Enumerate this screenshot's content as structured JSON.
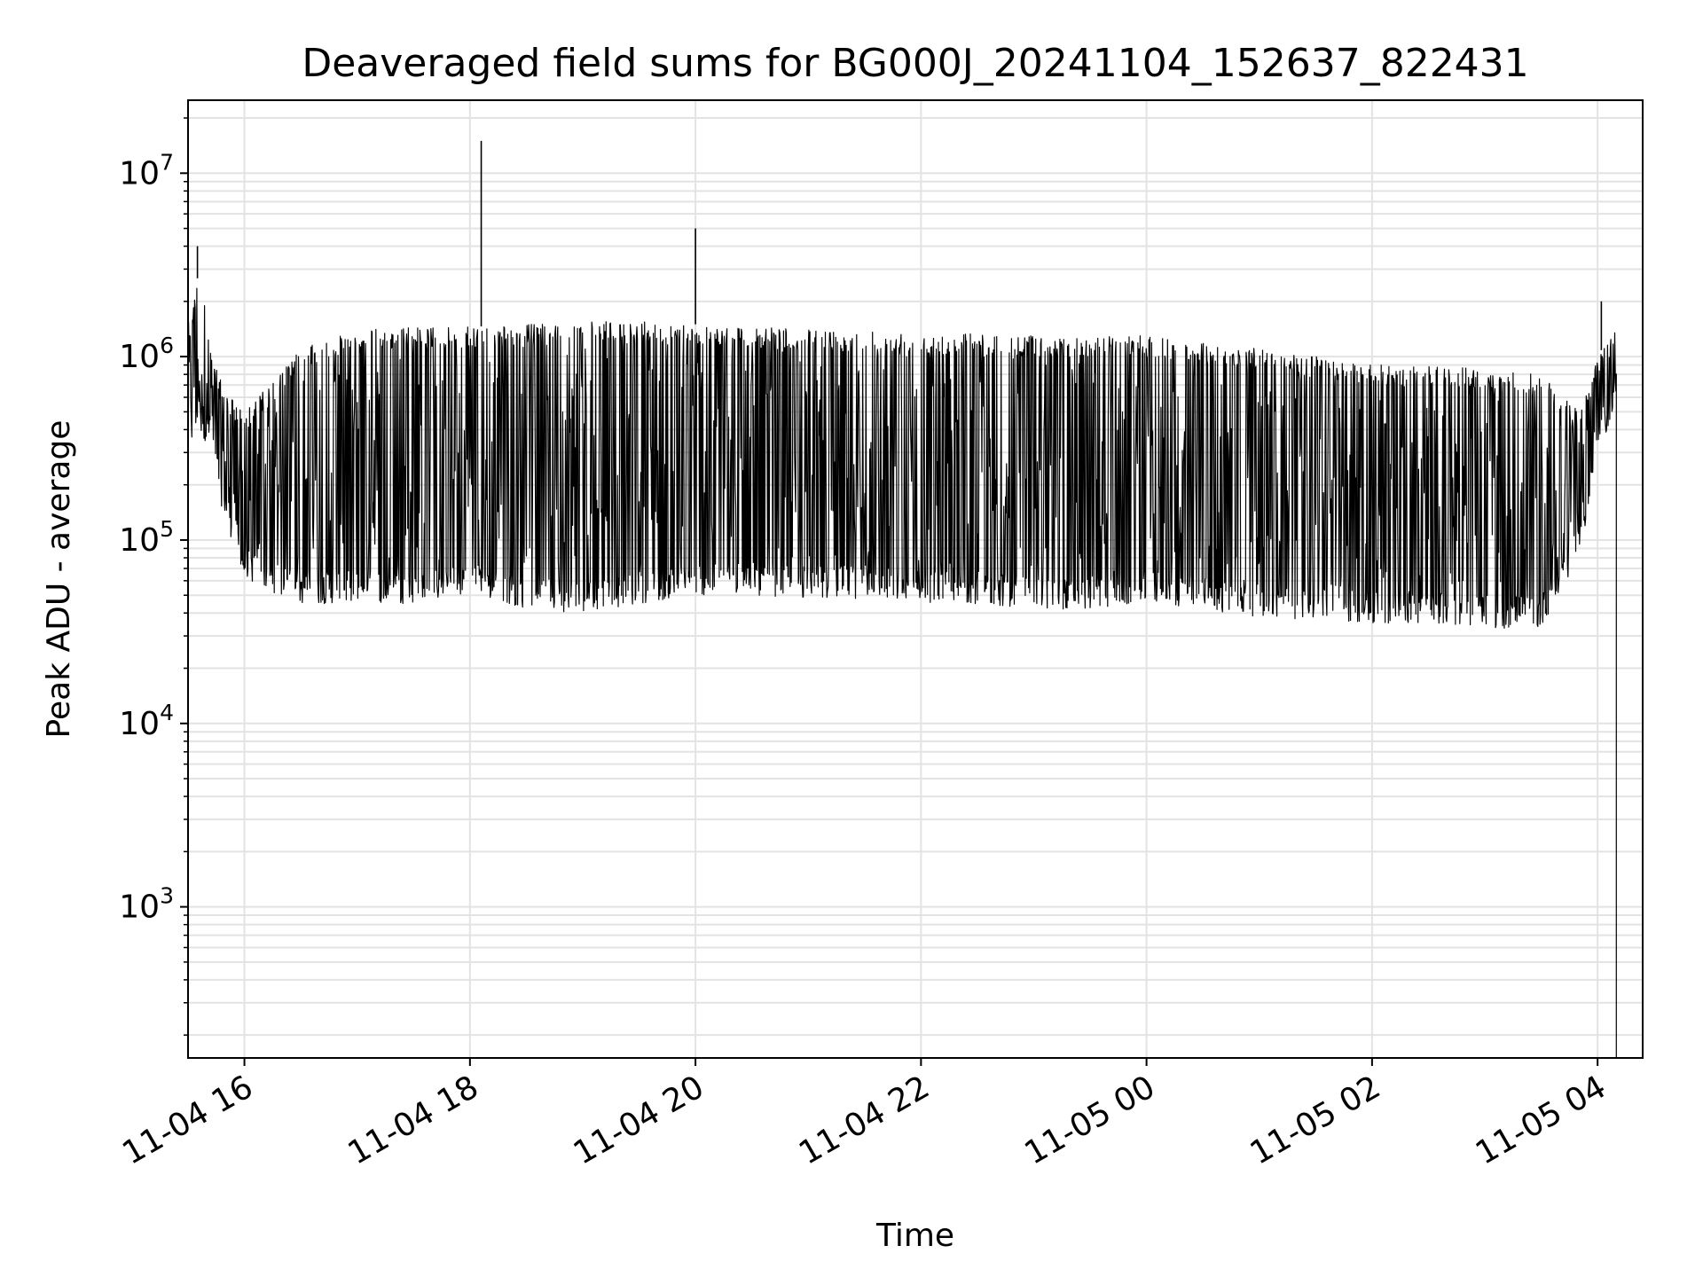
{
  "chart_data": {
    "type": "line",
    "title": "Deaveraged field sums for BG000J_20241104_152637_822431",
    "xlabel": "Time",
    "ylabel": "Peak ADU - average",
    "yscale": "log",
    "ylim": [
      150,
      25000000
    ],
    "xlim": [
      "2024-11-04 15:30",
      "2024-11-05 04:24"
    ],
    "grid": true,
    "line_color": "#000000",
    "grid_color": "#e3e3e3",
    "x_ticks": [
      {
        "value": "2024-11-04 16:00",
        "label": "11-04 16"
      },
      {
        "value": "2024-11-04 18:00",
        "label": "11-04 18"
      },
      {
        "value": "2024-11-04 20:00",
        "label": "11-04 20"
      },
      {
        "value": "2024-11-04 22:00",
        "label": "11-04 22"
      },
      {
        "value": "2024-11-05 00:00",
        "label": "11-05 00"
      },
      {
        "value": "2024-11-05 02:00",
        "label": "11-05 02"
      },
      {
        "value": "2024-11-05 04:00",
        "label": "11-05 04"
      }
    ],
    "y_ticks": [
      {
        "value": 1000,
        "base": "10",
        "exp": "3"
      },
      {
        "value": 10000,
        "base": "10",
        "exp": "4"
      },
      {
        "value": 100000,
        "base": "10",
        "exp": "5"
      },
      {
        "value": 1000000,
        "base": "10",
        "exp": "6"
      },
      {
        "value": 10000000,
        "base": "10",
        "exp": "7"
      }
    ],
    "envelope": {
      "description_of_series": "dense oscillating trace; per-time upper and lower envelope",
      "x": [
        "2024-11-04 15:30",
        "2024-11-04 15:36",
        "2024-11-04 15:42",
        "2024-11-04 15:48",
        "2024-11-04 16:00",
        "2024-11-04 16:30",
        "2024-11-04 17:00",
        "2024-11-04 17:30",
        "2024-11-04 18:00",
        "2024-11-04 18:30",
        "2024-11-04 19:00",
        "2024-11-04 19:30",
        "2024-11-04 20:00",
        "2024-11-04 20:30",
        "2024-11-04 21:00",
        "2024-11-04 21:30",
        "2024-11-04 22:00",
        "2024-11-04 22:30",
        "2024-11-04 23:00",
        "2024-11-04 23:30",
        "2024-11-05 00:00",
        "2024-11-05 00:30",
        "2024-11-05 01:00",
        "2024-11-05 01:30",
        "2024-11-05 02:00",
        "2024-11-05 02:30",
        "2024-11-05 03:00",
        "2024-11-05 03:30",
        "2024-11-05 03:50",
        "2024-11-05 04:00",
        "2024-11-05 04:10"
      ],
      "upper": [
        1500000,
        3000000,
        1200000,
        700000,
        500000,
        1100000,
        1400000,
        1450000,
        1450000,
        1500000,
        1550000,
        1550000,
        1500000,
        1450000,
        1400000,
        1400000,
        1350000,
        1350000,
        1300000,
        1300000,
        1300000,
        1200000,
        1100000,
        1000000,
        900000,
        900000,
        850000,
        800000,
        500000,
        1000000,
        1500000
      ],
      "lower": [
        300000,
        400000,
        300000,
        150000,
        60000,
        45000,
        45000,
        45000,
        50000,
        42000,
        40000,
        45000,
        50000,
        50000,
        48000,
        48000,
        45000,
        45000,
        42000,
        42000,
        45000,
        42000,
        38000,
        36000,
        35000,
        35000,
        33000,
        33000,
        80000,
        250000,
        600000
      ]
    },
    "spikes": [
      {
        "x": "2024-11-04 18:06",
        "y": 15000000
      },
      {
        "x": "2024-11-04 20:00",
        "y": 5000000
      },
      {
        "x": "2024-11-04 15:35",
        "y": 4000000
      },
      {
        "x": "2024-11-05 04:02",
        "y": 2000000
      }
    ]
  }
}
